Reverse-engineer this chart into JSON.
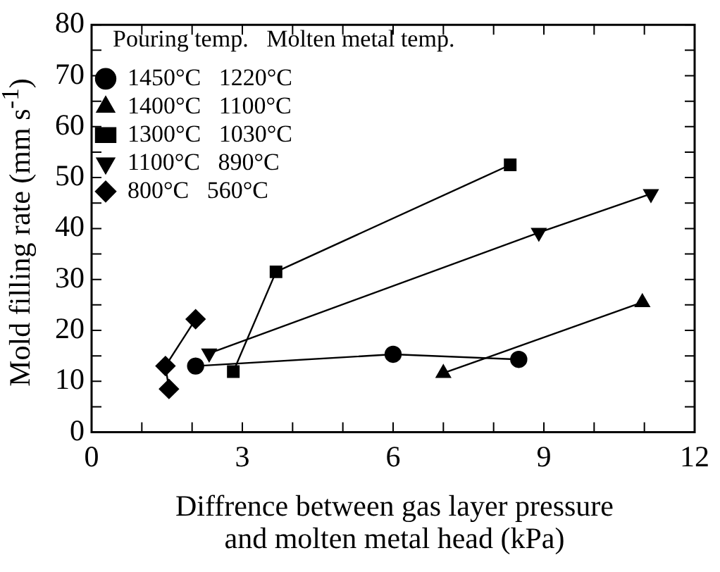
{
  "chart_data": {
    "type": "line",
    "xlabel": "Diffrence between gas layer pressure\nand molten metal head (kPa)",
    "ylabel": "Mold filling rate (mm s$^{-1}$)",
    "legend_title": "Pouring temp.   Molten metal temp.",
    "legend": "top left",
    "grid": false,
    "xlim": [
      0,
      12
    ],
    "ylim": [
      0,
      80
    ],
    "xticks": [
      0,
      {
        "value": 1,
        "label": null
      },
      {
        "value": 2,
        "label": null
      },
      3,
      {
        "value": 4,
        "label": null
      },
      {
        "value": 5,
        "label": null
      },
      6,
      {
        "value": 7,
        "label": null
      },
      {
        "value": 8,
        "label": null
      },
      9,
      {
        "value": 10,
        "label": null
      },
      {
        "value": 11,
        "label": null
      },
      12
    ],
    "yticks": [
      0,
      {
        "value": 5,
        "label": null
      },
      10,
      {
        "value": 15,
        "label": null
      },
      20,
      {
        "value": 25,
        "label": null
      },
      30,
      {
        "value": 35,
        "label": null
      },
      40,
      {
        "value": 45,
        "label": null
      },
      50,
      {
        "value": 55,
        "label": null
      },
      60,
      {
        "value": 65,
        "label": null
      },
      70,
      {
        "value": 75,
        "label": null
      },
      80
    ],
    "series": [
      {
        "name": "1450°C   1220°C",
        "color": "#000000",
        "marker": "circle",
        "x": [
          2.07,
          6.0,
          8.5
        ],
        "values": [
          13.0,
          15.3,
          14.3
        ]
      },
      {
        "name": "1400°C   1100°C",
        "color": "#000000",
        "marker": "triangle",
        "x": [
          7.0,
          10.96
        ],
        "values": [
          11.6,
          25.5
        ]
      },
      {
        "name": "1300°C   1030°C",
        "color": "#000000",
        "marker": "square",
        "x": [
          2.82,
          3.67,
          8.33
        ],
        "values": [
          11.9,
          31.5,
          52.5
        ]
      },
      {
        "name": "1100°C   890°C",
        "color": "#000000",
        "marker": "triangle-down",
        "x": [
          2.34,
          8.9,
          11.13
        ],
        "values": [
          15.5,
          39.2,
          46.8
        ]
      },
      {
        "name": "800°C   560°C",
        "color": "#000000",
        "marker": "diamond",
        "x": [
          1.54,
          1.47,
          2.07
        ],
        "values": [
          8.5,
          13.0,
          22.2
        ]
      }
    ]
  }
}
